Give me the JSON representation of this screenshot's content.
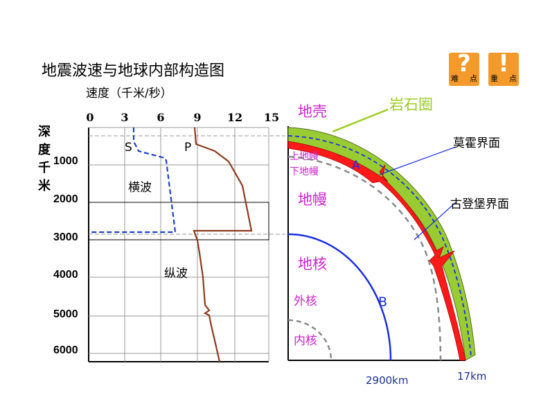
{
  "title": "地震波速与地球内部构造图",
  "speed_label": "速度（千米/秒）",
  "speed_ticks": [
    "0",
    "3",
    "6",
    "9",
    "12",
    "15"
  ],
  "depth_label_chars": [
    "深",
    "度",
    "千",
    "米"
  ],
  "depth_ticks": [
    "1000",
    "2000",
    "3000",
    "4000",
    "5000",
    "6000"
  ],
  "wave_labels": {
    "s": "S",
    "p": "P",
    "transverse": "横波",
    "longitudinal": "纵波"
  },
  "badges": [
    {
      "icon": "question-icon",
      "symbol": "?",
      "left": "难",
      "right": "点"
    },
    {
      "icon": "exclamation-icon",
      "symbol": "!",
      "left": "重",
      "right": "点"
    }
  ],
  "layers": {
    "crust": "地壳",
    "lithosphere": "岩石圈",
    "upper_mantle": "上地幔",
    "lower_mantle": "下地幔",
    "mantle": "地幔",
    "core": "地核",
    "outer_core": "外核",
    "inner_core": "内核",
    "point_a": "A",
    "point_b": "B"
  },
  "boundaries": {
    "moho": "莫霍界面",
    "gutenberg": "古登堡界面"
  },
  "depths": {
    "core_boundary": "2900km",
    "crust_bottom": "17km"
  },
  "colors": {
    "s_wave": "#1b3fc4",
    "p_wave": "#8b3a1a",
    "lithosphere": "#99cc33",
    "asthenosphere": "#ff1a1a",
    "core_boundary": "#1a2ee0",
    "layer_text": "#cc22cc",
    "dashed_inner": "#888888",
    "lithosphere_pointer": "#99cc22",
    "badge": "#f39a2a"
  }
}
